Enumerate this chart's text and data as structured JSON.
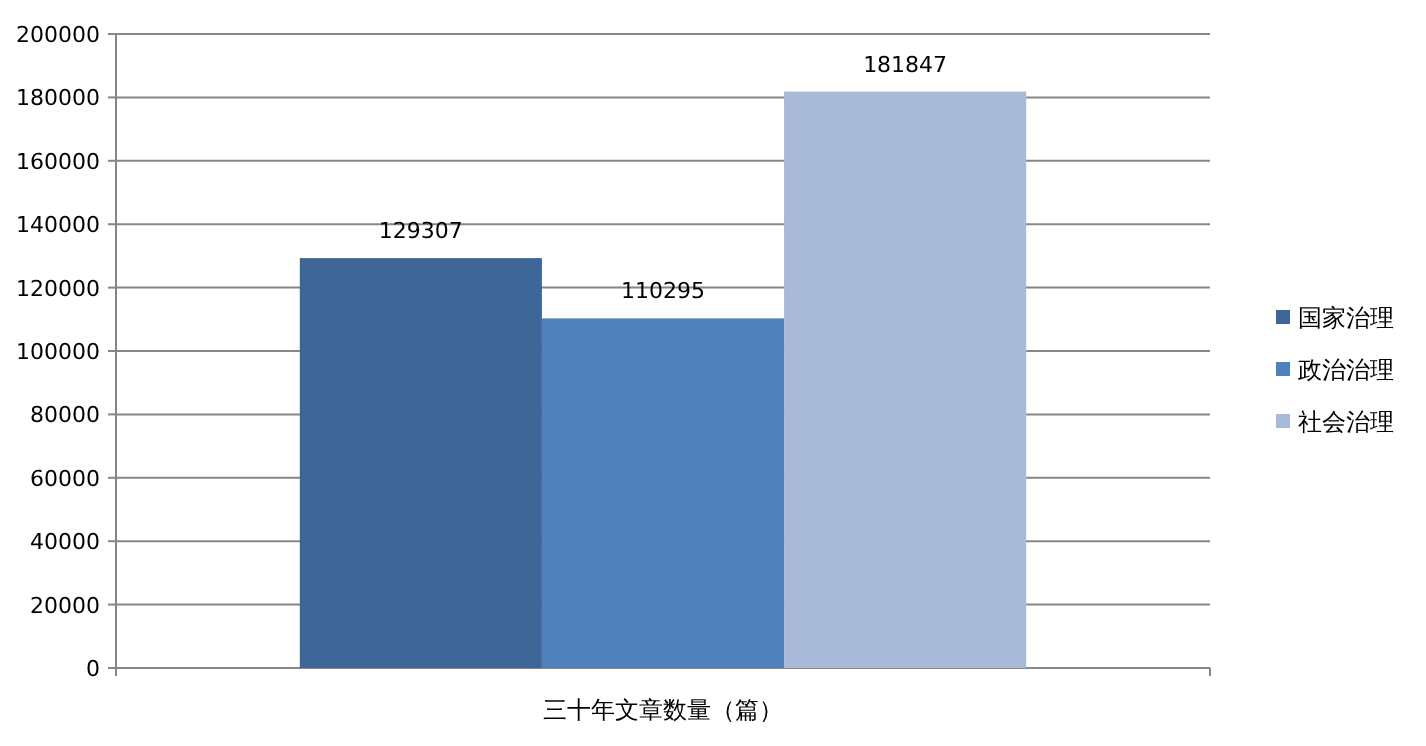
{
  "chart_data": {
    "type": "bar",
    "categories": [
      "三十年文章数量（篇）"
    ],
    "series": [
      {
        "name": "国家治理",
        "color": "#3e6797",
        "values": [
          129307
        ]
      },
      {
        "name": "政治治理",
        "color": "#4f81bd",
        "values": [
          110295
        ]
      },
      {
        "name": "社会治理",
        "color": "#a9b9d8",
        "values": [
          181847
        ]
      }
    ],
    "ylim": [
      0,
      200000
    ],
    "yticks": [
      0,
      20000,
      40000,
      60000,
      80000,
      100000,
      120000,
      140000,
      160000,
      180000,
      200000
    ],
    "grid": "y",
    "legend": "right",
    "data_labels": true
  }
}
